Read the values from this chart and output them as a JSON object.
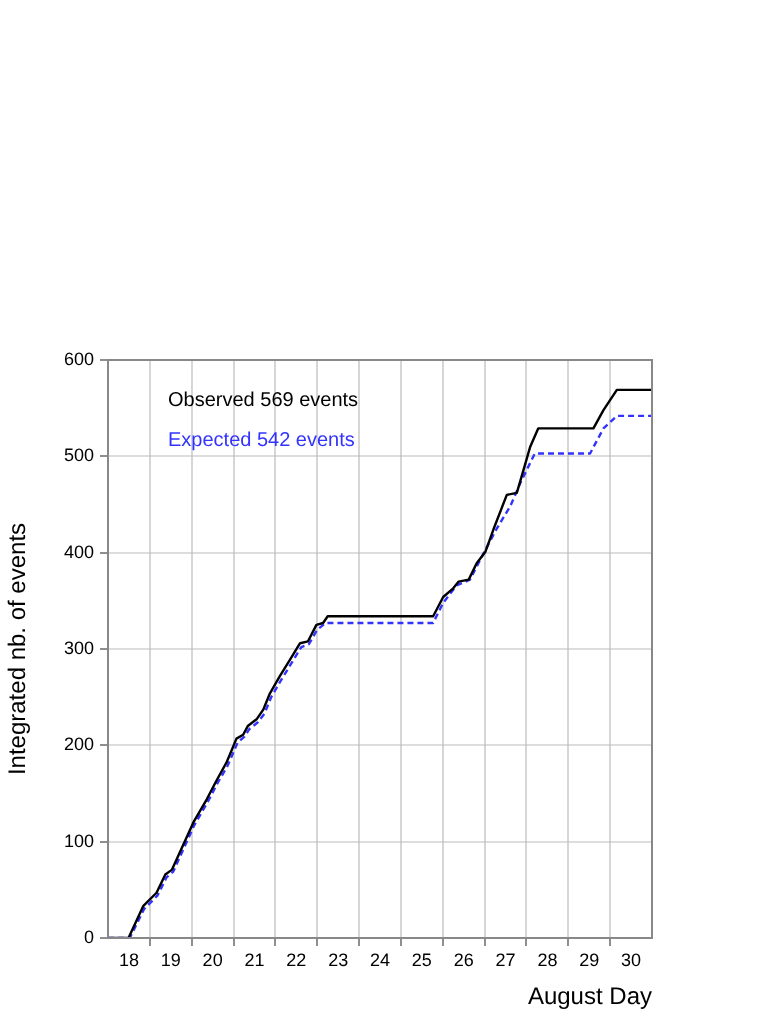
{
  "chart_data": {
    "type": "line",
    "xlabel": "August Day",
    "ylabel": "Integrated nb. of events",
    "xlim": [
      18,
      31
    ],
    "xticks": [
      {
        "value": 18.5,
        "label": "18"
      },
      {
        "value": 19,
        "label": null
      },
      {
        "value": 19.5,
        "label": "19"
      },
      {
        "value": 20,
        "label": null
      },
      {
        "value": 20.5,
        "label": "20"
      },
      {
        "value": 21,
        "label": null
      },
      {
        "value": 21.5,
        "label": "21"
      },
      {
        "value": 22,
        "label": null
      },
      {
        "value": 22.5,
        "label": "22"
      },
      {
        "value": 23,
        "label": null
      },
      {
        "value": 23.5,
        "label": "23"
      },
      {
        "value": 24,
        "label": null
      },
      {
        "value": 24.5,
        "label": "24"
      },
      {
        "value": 25,
        "label": null
      },
      {
        "value": 25.5,
        "label": "25"
      },
      {
        "value": 26,
        "label": null
      },
      {
        "value": 26.5,
        "label": "26"
      },
      {
        "value": 27,
        "label": null
      },
      {
        "value": 27.5,
        "label": "27"
      },
      {
        "value": 28,
        "label": null
      },
      {
        "value": 28.5,
        "label": "28"
      },
      {
        "value": 29,
        "label": null
      },
      {
        "value": 29.5,
        "label": "29"
      },
      {
        "value": 30,
        "label": null
      },
      {
        "value": 30.5,
        "label": "30"
      }
    ],
    "ylim": [
      0,
      600
    ],
    "yticks": [
      0,
      100,
      200,
      300,
      400,
      500,
      600
    ],
    "grid": true,
    "legend": "top left",
    "marker": "none",
    "series": [
      {
        "name": "Observed 569 events",
        "color": "#000000",
        "line_style": "solid",
        "x": [
          18,
          18.49,
          18.84,
          19.16,
          19.37,
          19.53,
          20.04,
          20.36,
          20.6,
          20.83,
          21.07,
          21.23,
          21.34,
          21.55,
          21.71,
          21.87,
          22.11,
          22.35,
          22.59,
          22.78,
          22.98,
          23.14,
          23.25,
          25.77,
          26.01,
          26.25,
          26.38,
          26.62,
          26.81,
          27.02,
          27.21,
          27.53,
          27.77,
          27.93,
          28.09,
          28.28,
          29.6,
          29.84,
          30.16,
          31
        ],
        "values": [
          0,
          0,
          33,
          47,
          66,
          71,
          120,
          144,
          164,
          182,
          207,
          211,
          220,
          227,
          237,
          254,
          272,
          289,
          306,
          308,
          325,
          327,
          334,
          334,
          354,
          363,
          370,
          372,
          389,
          401,
          424,
          460,
          462,
          486,
          510,
          529,
          529,
          548,
          569,
          569
        ]
      },
      {
        "name": "Expected 542 events",
        "color": "#3333ff",
        "line_style": "dashed",
        "x": [
          18,
          18.52,
          18.86,
          19.18,
          19.4,
          19.56,
          20.06,
          20.38,
          20.62,
          20.86,
          21.1,
          21.26,
          21.38,
          21.58,
          21.74,
          21.9,
          22.14,
          22.38,
          22.62,
          22.8,
          23.0,
          23.2,
          25.77,
          26.01,
          26.33,
          26.65,
          26.97,
          27.29,
          27.61,
          27.85,
          28.2,
          29.52,
          29.84,
          30.16,
          31
        ],
        "values": [
          0,
          0,
          30,
          44,
          63,
          69,
          117,
          141,
          161,
          179,
          203,
          209,
          217,
          224,
          233,
          250,
          268,
          285,
          302,
          305,
          320,
          327,
          327,
          348,
          366,
          372,
          399,
          425,
          448,
          472,
          503,
          503,
          529,
          542,
          542
        ]
      }
    ]
  }
}
